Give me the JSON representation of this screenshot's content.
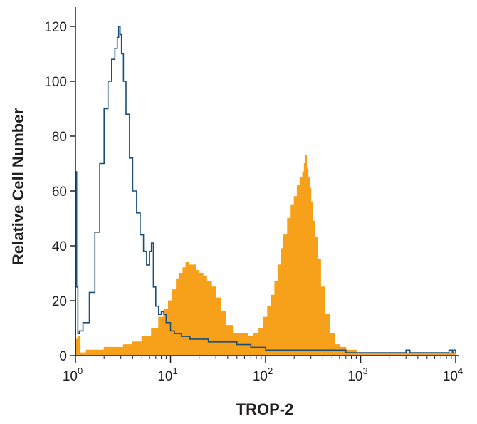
{
  "chart_data": {
    "type": "area",
    "title": "",
    "xlabel": "TROP-2",
    "ylabel": "Relative Cell Number",
    "xscale": "log",
    "xlim": [
      1,
      10000
    ],
    "ylim": [
      0,
      130
    ],
    "grid": false,
    "legend": "none",
    "xticks": [
      {
        "value": 1,
        "base": "10",
        "exp": "0"
      },
      {
        "value": 10,
        "base": "10",
        "exp": "1"
      },
      {
        "value": 100,
        "base": "10",
        "exp": "2"
      },
      {
        "value": 1000,
        "base": "10",
        "exp": "3"
      },
      {
        "value": 10000,
        "base": "10",
        "exp": "4"
      }
    ],
    "yticks": [
      0,
      20,
      40,
      60,
      80,
      100,
      120
    ],
    "series": [
      {
        "style": "filled",
        "color": "#f7a11a",
        "x": [
          1.0,
          1.06,
          1.12,
          1.3,
          1.6,
          2.0,
          2.5,
          3.2,
          4.0,
          5.0,
          6.3,
          7.5,
          8.5,
          9.5,
          10.5,
          11.5,
          12.5,
          13.5,
          14.5,
          15.5,
          17,
          18.5,
          20,
          22,
          24,
          27,
          30,
          34,
          38,
          45,
          55,
          65,
          75,
          85,
          95,
          105,
          115,
          125,
          135,
          145,
          155,
          170,
          185,
          200,
          215,
          230,
          245,
          255,
          262,
          270,
          280,
          290,
          300,
          315,
          330,
          350,
          380,
          420,
          470,
          530,
          600,
          700,
          800,
          900,
          1000,
          1200,
          1500,
          2000,
          3000,
          5000,
          7000,
          9000,
          10000
        ],
        "y": [
          6,
          7,
          1,
          2,
          2,
          3,
          3,
          4,
          5,
          7,
          10,
          14,
          17,
          20,
          24,
          28,
          30,
          32,
          34,
          33,
          33,
          31,
          30,
          29,
          27,
          25,
          21,
          16,
          11,
          8,
          8,
          7,
          8,
          10,
          14,
          18,
          22,
          27,
          33,
          39,
          44,
          50,
          55,
          58,
          62,
          65,
          67,
          70,
          73,
          68,
          65,
          61,
          56,
          49,
          43,
          35,
          25,
          15,
          8,
          4,
          3,
          2,
          2,
          1,
          1,
          1,
          1,
          1,
          1,
          1,
          1,
          1,
          1
        ]
      },
      {
        "style": "outline",
        "color": "#1b4f79",
        "x": [
          1.0,
          1.03,
          1.06,
          1.1,
          1.2,
          1.4,
          1.6,
          1.8,
          2.0,
          2.2,
          2.4,
          2.6,
          2.75,
          2.85,
          2.95,
          3.05,
          3.2,
          3.4,
          3.7,
          4.0,
          4.4,
          4.8,
          5.2,
          5.6,
          6.0,
          6.3,
          6.6,
          7.0,
          7.5,
          8.0,
          8.5,
          9.0,
          10,
          11,
          13,
          16,
          20,
          25,
          35,
          50,
          70,
          100,
          150,
          200,
          300,
          500,
          700,
          1000,
          1500,
          2000,
          3000,
          3300,
          3600,
          5000,
          7000,
          8500,
          9200,
          9500,
          10000
        ],
        "y": [
          67,
          25,
          8,
          9,
          12,
          23,
          45,
          70,
          90,
          100,
          108,
          112,
          116,
          120,
          117,
          110,
          100,
          88,
          72,
          60,
          52,
          44,
          38,
          33,
          38,
          41,
          25,
          18,
          15,
          16,
          15,
          12,
          9,
          8,
          7,
          6,
          6,
          5,
          5,
          4,
          3,
          2,
          2,
          2,
          2,
          2,
          1,
          1,
          1,
          1,
          2,
          1,
          1,
          1,
          1,
          2,
          1,
          2,
          1
        ]
      }
    ]
  }
}
